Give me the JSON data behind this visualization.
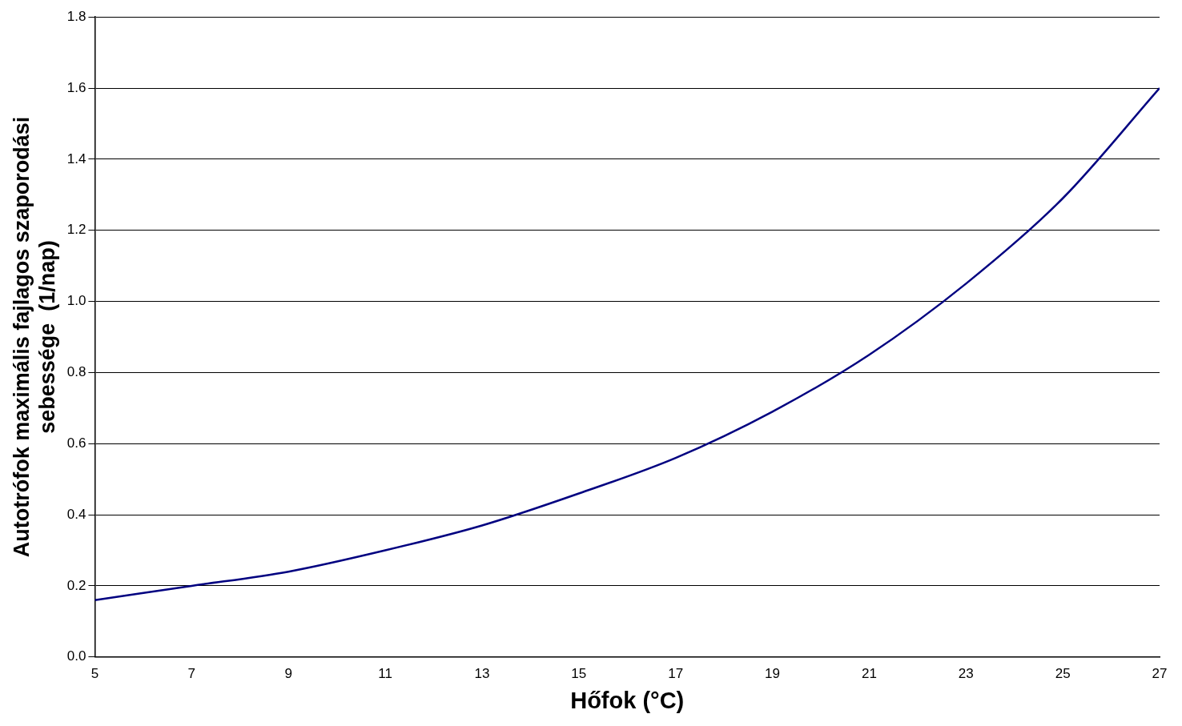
{
  "chart_data": {
    "type": "line",
    "xlabel": "Hőfok (°C)",
    "ylabel": "Autotrófok maximális fajlagos szaporodási sebessége  (1/nap)",
    "x": [
      5,
      7,
      9,
      11,
      13,
      15,
      17,
      19,
      21,
      23,
      25,
      27
    ],
    "series": [
      {
        "color": "#000080",
        "values": [
          0.16,
          0.2,
          0.24,
          0.3,
          0.37,
          0.46,
          0.56,
          0.69,
          0.85,
          1.05,
          1.29,
          1.6
        ]
      }
    ],
    "xlim": [
      5,
      27
    ],
    "xticks": [
      5,
      7,
      9,
      11,
      13,
      15,
      17,
      19,
      21,
      23,
      25,
      27
    ],
    "ylim": [
      0,
      1.8
    ],
    "yticks": [
      {
        "value": 0,
        "label": "0.0"
      },
      0.2,
      0.4,
      0.6,
      0.8,
      {
        "value": 1,
        "label": "1.0"
      },
      1.2,
      1.4,
      1.6,
      1.8
    ],
    "grid": "y",
    "marker": "none",
    "line_style": "solid",
    "legend": false
  }
}
